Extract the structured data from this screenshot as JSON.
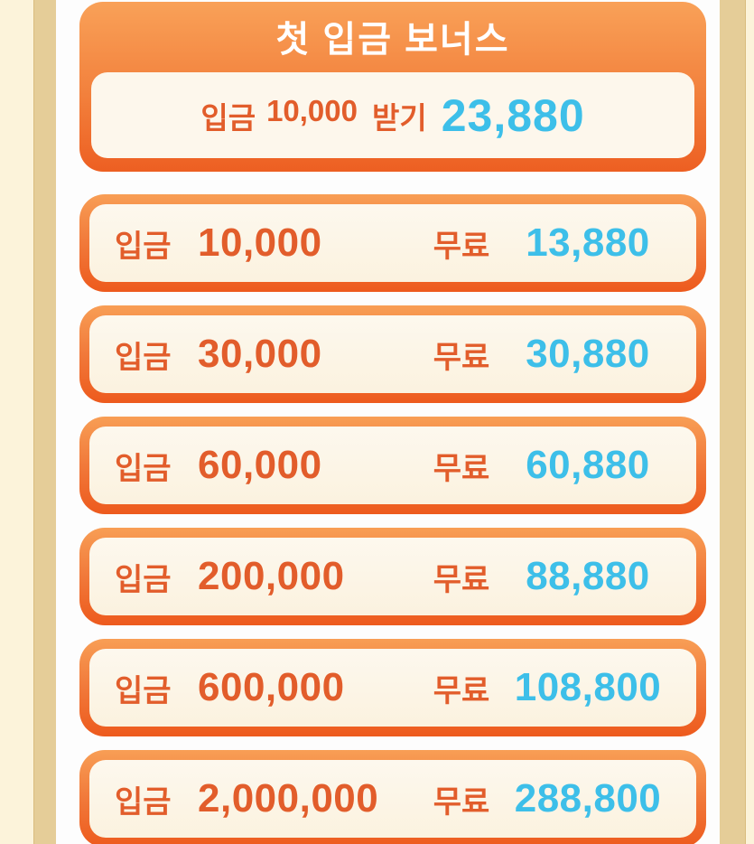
{
  "colors": {
    "left_margin_cream": "#fcf3da",
    "margin_strip_tan": "#e5cd98",
    "panel_orange_top": "#f9a158",
    "panel_orange_bottom": "#ed5f22",
    "inner_cream": "#fcf5e6",
    "deposit_text_orange": "#e25d2b",
    "bonus_text_cyan": "#3dbfe9",
    "title_text": "#ffffff"
  },
  "header": {
    "title": "첫 입금 보너스",
    "claim": {
      "deposit_label": "입금",
      "deposit_value": "10,000",
      "action_label": "받기",
      "bonus_value": "23,880"
    }
  },
  "tiers": {
    "deposit_label": "입금",
    "free_label": "무료",
    "rows": [
      {
        "deposit": "10,000",
        "bonus": "13,880"
      },
      {
        "deposit": "30,000",
        "bonus": "30,880"
      },
      {
        "deposit": "60,000",
        "bonus": "60,880"
      },
      {
        "deposit": "200,000",
        "bonus": "88,880"
      },
      {
        "deposit": "600,000",
        "bonus": "108,800"
      },
      {
        "deposit": "2,000,000",
        "bonus": "288,800"
      }
    ]
  }
}
